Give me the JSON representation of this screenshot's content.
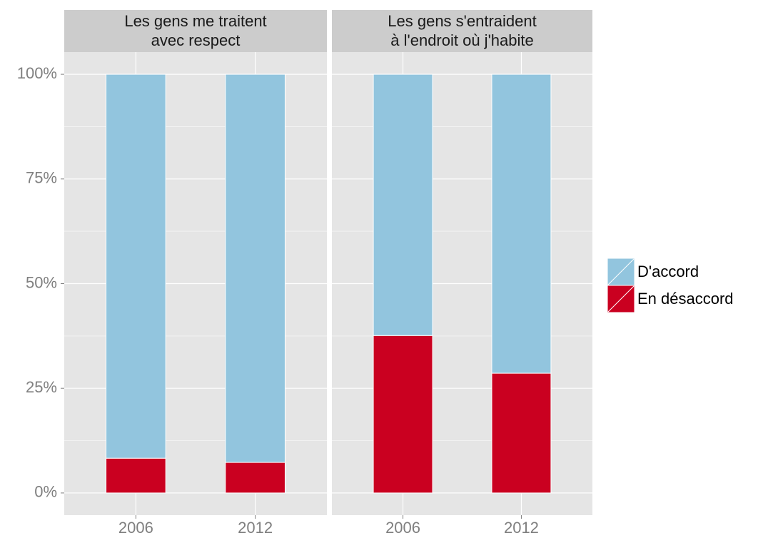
{
  "chart_data": {
    "type": "bar",
    "stacked": true,
    "categories": [
      "2006",
      "2012"
    ],
    "ylim": [
      -5.3,
      105.3
    ],
    "yticks": [
      {
        "value": 0,
        "label": "0%"
      },
      {
        "value": 25,
        "label": "25%"
      },
      {
        "value": 50,
        "label": "50%"
      },
      {
        "value": 75,
        "label": "75%"
      },
      {
        "value": 100,
        "label": "100%"
      }
    ],
    "grid": true,
    "legend": "right",
    "facets": [
      {
        "title": [
          "Les gens me traitent",
          "avec respect"
        ]
      },
      {
        "title": [
          "Les gens s'entraident",
          "à l'endroit où j'habite"
        ]
      }
    ],
    "series": [
      {
        "name": "D'accord",
        "color": "#92c5de",
        "values": [
          [
            91.7,
            92.7
          ],
          [
            62.4,
            71.4
          ]
        ]
      },
      {
        "name": "En désaccord",
        "color": "#ca0020",
        "values": [
          [
            8.3,
            7.3
          ],
          [
            37.6,
            28.6
          ]
        ]
      }
    ]
  }
}
